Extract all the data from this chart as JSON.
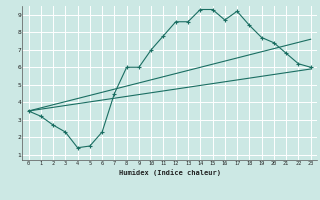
{
  "xlabel": "Humidex (Indice chaleur)",
  "bg_color": "#cce8e4",
  "grid_color": "#ffffff",
  "line_color": "#1a6e62",
  "xlim": [
    -0.5,
    23.5
  ],
  "ylim": [
    0.7,
    9.5
  ],
  "xticks": [
    0,
    1,
    2,
    3,
    4,
    5,
    6,
    7,
    8,
    9,
    10,
    11,
    12,
    13,
    14,
    15,
    16,
    17,
    18,
    19,
    20,
    21,
    22,
    23
  ],
  "yticks": [
    1,
    2,
    3,
    4,
    5,
    6,
    7,
    8,
    9
  ],
  "line1_x": [
    0,
    1,
    2,
    3,
    4,
    5,
    6,
    7,
    8,
    9,
    10,
    11,
    12,
    13,
    14,
    15,
    16,
    17,
    18,
    19,
    20,
    21,
    22,
    23
  ],
  "line1_y": [
    3.5,
    3.2,
    2.7,
    2.3,
    1.4,
    1.5,
    2.3,
    4.5,
    6.0,
    6.0,
    7.0,
    7.8,
    8.6,
    8.6,
    9.3,
    9.3,
    8.7,
    9.2,
    8.4,
    7.7,
    7.4,
    6.8,
    6.2,
    6.0
  ],
  "line2_x": [
    0,
    23
  ],
  "line2_y": [
    3.5,
    7.6
  ],
  "line3_x": [
    0,
    23
  ],
  "line3_y": [
    3.5,
    5.9
  ]
}
